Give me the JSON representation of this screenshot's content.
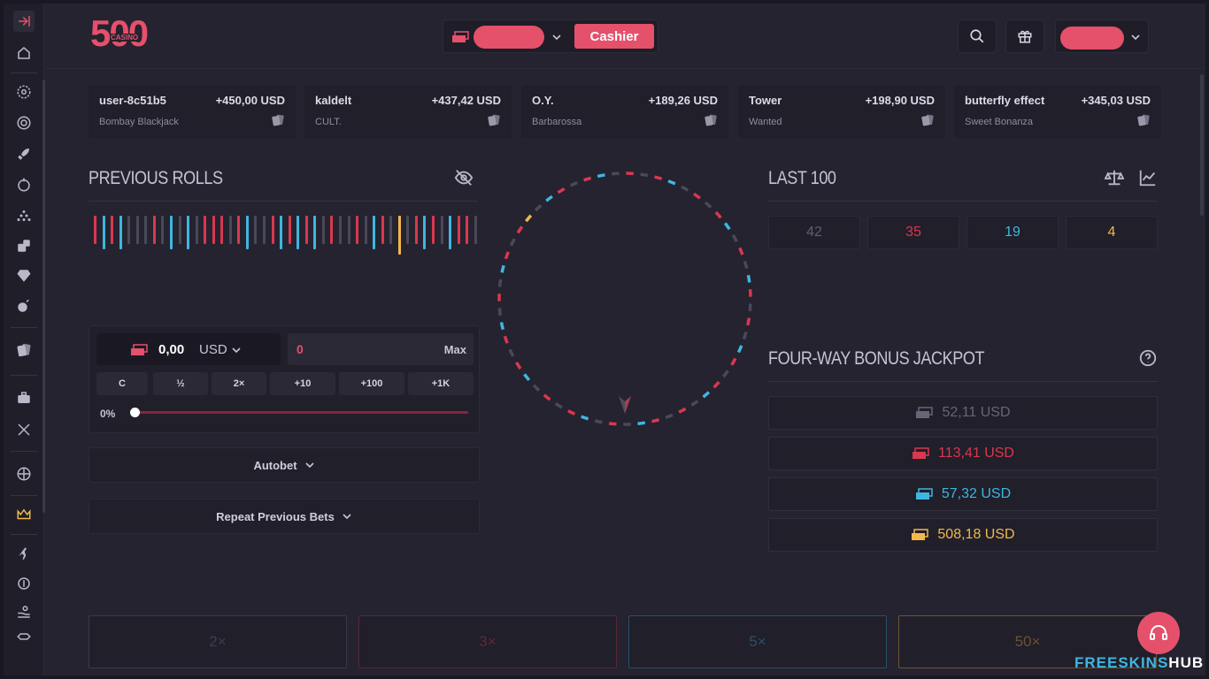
{
  "brand": {
    "logo_number": "500",
    "logo_sub": "CASINO"
  },
  "header": {
    "cashier_label": "Cashier"
  },
  "feed": [
    {
      "user": "user-8c51b5",
      "amount": "+450,00 USD",
      "game": "Bombay Blackjack"
    },
    {
      "user": "kaldelt",
      "amount": "+437,42 USD",
      "game": "CULT."
    },
    {
      "user": "O.Y.",
      "amount": "+189,26 USD",
      "game": "Barbarossa"
    },
    {
      "user": "Tower",
      "amount": "+198,90 USD",
      "game": "Wanted"
    },
    {
      "user": "butterfly effect",
      "amount": "+345,03 USD",
      "game": "Sweet Bonanza"
    }
  ],
  "previous_rolls": {
    "title": "PREVIOUS ROLLS",
    "rolls": [
      "r",
      "b",
      "r",
      "b",
      "g",
      "g",
      "g",
      "r",
      "g",
      "b",
      "g",
      "b",
      "g",
      "r",
      "r",
      "r",
      "g",
      "r",
      "b",
      "g",
      "g",
      "r",
      "b",
      "r",
      "b",
      "r",
      "b",
      "g",
      "r",
      "g",
      "g",
      "r",
      "g",
      "b",
      "r",
      "g",
      "y",
      "g",
      "r",
      "b",
      "r",
      "g",
      "b",
      "r",
      "r",
      "g"
    ]
  },
  "bet": {
    "amount_value": "0,00",
    "amount_currency": "USD",
    "input_value": "0",
    "max_label": "Max",
    "quick_buttons": [
      "C",
      "½",
      "2×",
      "+10",
      "+100",
      "+1K"
    ],
    "percent_label": "0%",
    "autobet_label": "Autobet",
    "repeat_label": "Repeat Previous Bets"
  },
  "last100": {
    "title": "LAST 100",
    "counts": [
      "42",
      "35",
      "19",
      "4"
    ]
  },
  "jackpot": {
    "title": "FOUR-WAY BONUS JACKPOT",
    "values": [
      "52,11 USD",
      "113,41 USD",
      "57,32 USD",
      "508,18 USD"
    ]
  },
  "bet_options": [
    "2×",
    "3×",
    "5×",
    "50×"
  ],
  "watermark": {
    "part1": "FREESKINS",
    "part2": "HUB"
  },
  "colors": {
    "accent": "#e5506b",
    "red": "#d9384f",
    "blue": "#3fb6e0",
    "gold": "#f2b84b",
    "grey": "#4a4957"
  }
}
